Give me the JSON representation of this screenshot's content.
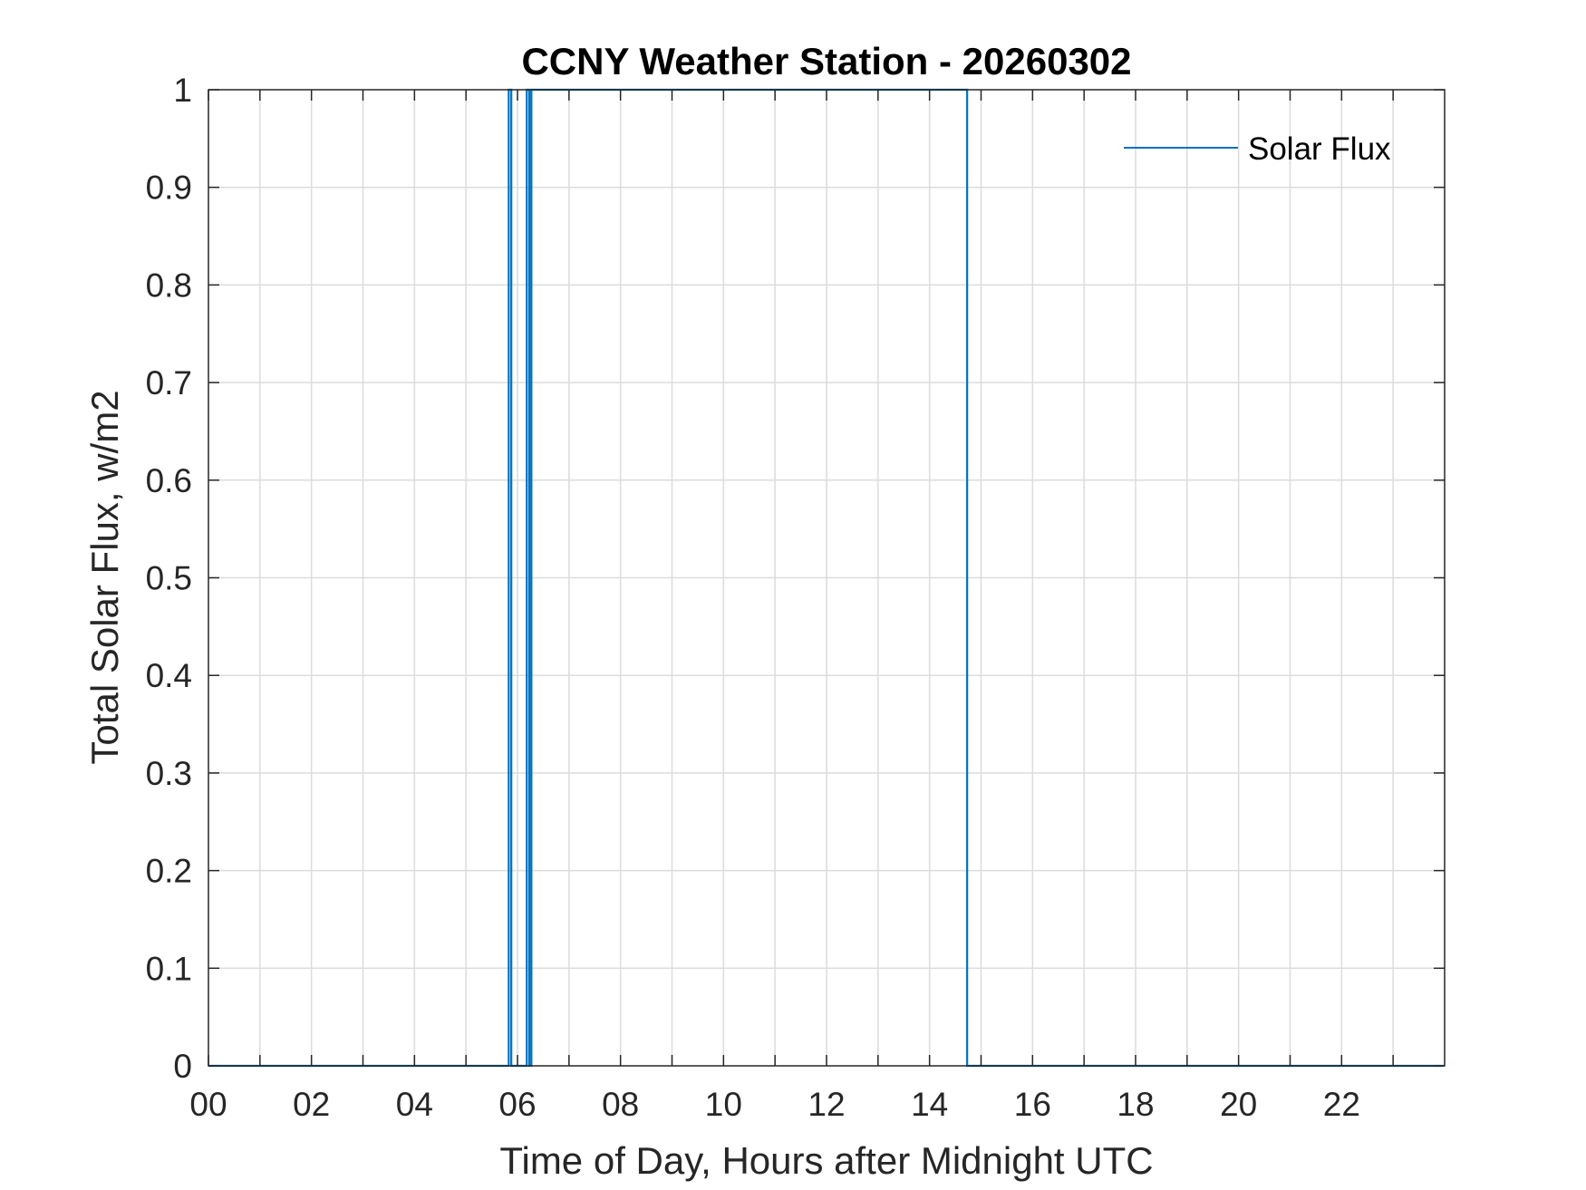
{
  "chart_data": {
    "type": "line",
    "title": "CCNY Weather Station - 20260302",
    "xlabel": "Time of Day, Hours after Midnight UTC",
    "ylabel": "Total Solar Flux, w/m2",
    "xlim": [
      0,
      24
    ],
    "ylim": [
      0,
      1
    ],
    "x_ticks": [
      0,
      2,
      4,
      6,
      8,
      10,
      12,
      14,
      16,
      18,
      20,
      22
    ],
    "x_tick_labels": [
      "00",
      "02",
      "04",
      "06",
      "08",
      "10",
      "12",
      "14",
      "16",
      "18",
      "20",
      "22"
    ],
    "x_minor_grid_step": 1,
    "y_ticks": [
      0,
      0.1,
      0.2,
      0.3,
      0.4,
      0.5,
      0.6,
      0.7,
      0.8,
      0.9,
      1
    ],
    "y_tick_labels": [
      "0",
      "0.1",
      "0.2",
      "0.3",
      "0.4",
      "0.5",
      "0.6",
      "0.7",
      "0.8",
      "0.9",
      "1"
    ],
    "grid": true,
    "legend_position": "top-right",
    "series": [
      {
        "name": "Solar Flux",
        "color": "#0072bd",
        "x": [
          0,
          5.83,
          5.83,
          5.88,
          5.88,
          6.18,
          6.18,
          6.23,
          6.23,
          6.27,
          6.27,
          14.73,
          14.73,
          14.75,
          14.75,
          23.98
        ],
        "y": [
          0,
          0,
          1,
          1,
          0,
          0,
          1,
          1,
          0,
          0,
          1,
          1,
          0,
          0,
          0,
          0
        ]
      }
    ]
  }
}
